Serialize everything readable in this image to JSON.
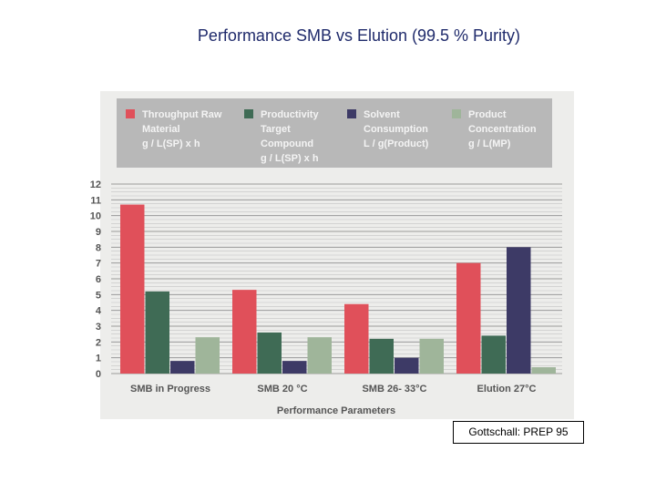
{
  "slide": {
    "title": "Performance SMB vs Elution (99.5 % Purity)",
    "source": "Gottschall: PREP 95"
  },
  "chart_data": {
    "type": "bar",
    "title": "Performance SMB vs Elution (99.5 % Purity)",
    "xlabel": "Performance Parameters",
    "ylabel": "",
    "ylim": [
      0,
      12
    ],
    "yticks": [
      "0",
      "1",
      "2",
      "3",
      "4",
      "5",
      "6",
      "7",
      "8",
      "9",
      "10",
      "11",
      "12"
    ],
    "grid": true,
    "legend_position": "top",
    "categories": [
      "SMB in Progress",
      "SMB 20 °C",
      "SMB 26- 33°C",
      "Elution 27°C"
    ],
    "series": [
      {
        "name": "Throughput Raw Material g / L(SP) x h",
        "legend_lines": [
          "Throughput Raw",
          "Material",
          "g / L(SP) x h"
        ],
        "color": "#e0505a",
        "values": [
          10.7,
          5.3,
          4.4,
          7.0
        ]
      },
      {
        "name": "Productivity Target Compound g / L(SP) x h",
        "legend_lines": [
          "Productivity",
          "Target",
          "Compound",
          "g / L(SP) x h"
        ],
        "color": "#3f6b55",
        "values": [
          5.2,
          2.6,
          2.2,
          2.4
        ]
      },
      {
        "name": "Solvent Consumption L / g(Product)",
        "legend_lines": [
          "Solvent",
          "Consumption",
          "L / g(Product)"
        ],
        "color": "#3d3a66",
        "values": [
          0.8,
          0.8,
          1.0,
          8.0
        ]
      },
      {
        "name": "Product Concentration g / L(MP)",
        "legend_lines": [
          "Product",
          "Concentration",
          "g / L(MP)"
        ],
        "color": "#9fb59a",
        "values": [
          2.3,
          2.3,
          2.2,
          0.4
        ]
      }
    ]
  }
}
